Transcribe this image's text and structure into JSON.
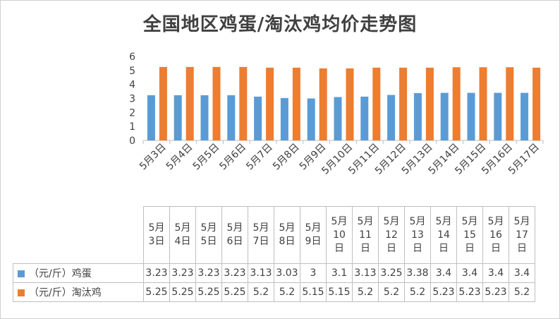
{
  "chart_data": {
    "type": "bar",
    "title": "全国地区鸡蛋/淘汰鸡均价走势图",
    "categories": [
      "5月3日",
      "5月4日",
      "5月5日",
      "5月6日",
      "5月7日",
      "5月8日",
      "5月9日",
      "5月10日",
      "5月11日",
      "5月12日",
      "5月13日",
      "5月14日",
      "5月15日",
      "5月16日",
      "5月17日"
    ],
    "table_headers": [
      "5月\n3日",
      "5月\n4日",
      "5月\n5日",
      "5月\n6日",
      "5月\n7日",
      "5月\n8日",
      "5月\n9日",
      "5月\n10\n日",
      "5月\n11\n日",
      "5月\n12\n日",
      "5月\n13\n日",
      "5月\n14\n日",
      "5月\n15\n日",
      "5月\n16\n日",
      "5月\n17\n日"
    ],
    "series": [
      {
        "name": "（元/斤）鸡蛋",
        "color": "#5B9BD5",
        "values": [
          3.23,
          3.23,
          3.23,
          3.23,
          3.13,
          3.03,
          3,
          3.1,
          3.13,
          3.25,
          3.38,
          3.4,
          3.4,
          3.4,
          3.4
        ]
      },
      {
        "name": "（元/斤）淘汰鸡",
        "color": "#ED7D31",
        "values": [
          5.25,
          5.25,
          5.25,
          5.25,
          5.2,
          5.2,
          5.15,
          5.15,
          5.2,
          5.2,
          5.2,
          5.23,
          5.23,
          5.23,
          5.2
        ]
      }
    ],
    "table_values": [
      [
        "3.23",
        "3.23",
        "3.23",
        "3.23",
        "3.13",
        "3.03",
        "3",
        "3.1",
        "3.13",
        "3.25",
        "3.38",
        "3.4",
        "3.4",
        "3.4",
        "3.4"
      ],
      [
        "5.25",
        "5.25",
        "5.25",
        "5.25",
        "5.2",
        "5.2",
        "5.15",
        "5.15",
        "5.2",
        "5.2",
        "5.2",
        "5.23",
        "5.23",
        "5.23",
        "5.2"
      ]
    ],
    "yticks": [
      "0",
      "1",
      "2",
      "3",
      "4",
      "5",
      "6"
    ],
    "ylim": [
      0,
      6
    ],
    "grid": false,
    "legend": "data-table"
  }
}
